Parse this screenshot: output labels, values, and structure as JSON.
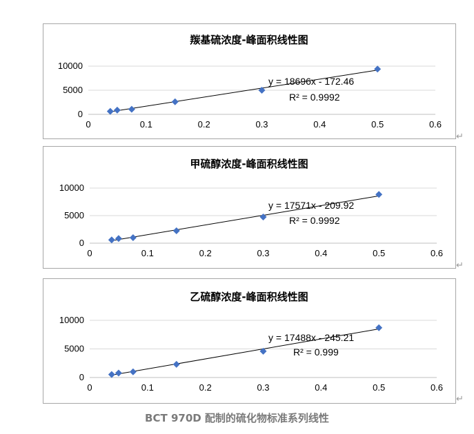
{
  "caption": "BCT 970D 配制的硫化物标准系列线性",
  "return_mark": "↵",
  "chart_data": [
    {
      "type": "scatter",
      "title": "羰基硫浓度-峰面积线性图",
      "xlim": [
        0,
        0.6
      ],
      "ylim": [
        0,
        10000
      ],
      "xticks": [
        "0",
        "0.1",
        "0.2",
        "0.3",
        "0.4",
        "0.5",
        "0.6"
      ],
      "yticks": [
        "0",
        "5000",
        "10000"
      ],
      "grid": true,
      "marker_color": "#4472c4",
      "series": [
        {
          "x": [
            0.038,
            0.05,
            0.075,
            0.15,
            0.3,
            0.5
          ],
          "y": [
            620,
            880,
            1050,
            2600,
            5000,
            9400
          ]
        }
      ],
      "trendline": {
        "slope": 18696,
        "intercept": -172.46,
        "equation": "y = 18696x - 172.46",
        "r2": "R² = 0.9992"
      }
    },
    {
      "type": "scatter",
      "title": "甲硫醇浓度-峰面积线性图",
      "xlim": [
        0,
        0.6
      ],
      "ylim": [
        0,
        10000
      ],
      "xticks": [
        "0",
        "0.1",
        "0.2",
        "0.3",
        "0.4",
        "0.5",
        "0.6"
      ],
      "yticks": [
        "0",
        "5000",
        "10000"
      ],
      "grid": true,
      "marker_color": "#4472c4",
      "series": [
        {
          "x": [
            0.038,
            0.05,
            0.075,
            0.15,
            0.3,
            0.5
          ],
          "y": [
            600,
            850,
            1000,
            2250,
            4750,
            8850
          ]
        }
      ],
      "trendline": {
        "slope": 17571,
        "intercept": -209.92,
        "equation": "y = 17571x - 209.92",
        "r2": "R² = 0.9992"
      }
    },
    {
      "type": "scatter",
      "title": "乙硫醇浓度-峰面积线性图",
      "xlim": [
        0,
        0.6
      ],
      "ylim": [
        0,
        10000
      ],
      "xticks": [
        "0",
        "0.1",
        "0.2",
        "0.3",
        "0.4",
        "0.5",
        "0.6"
      ],
      "yticks": [
        "0",
        "5000",
        "10000"
      ],
      "grid": true,
      "marker_color": "#4472c4",
      "series": [
        {
          "x": [
            0.038,
            0.05,
            0.075,
            0.15,
            0.3,
            0.5
          ],
          "y": [
            520,
            780,
            1000,
            2300,
            4600,
            8700
          ]
        }
      ],
      "trendline": {
        "slope": 17488,
        "intercept": -245.21,
        "equation": "y = 17488x - 245.21",
        "r2": "R² = 0.999"
      }
    }
  ]
}
